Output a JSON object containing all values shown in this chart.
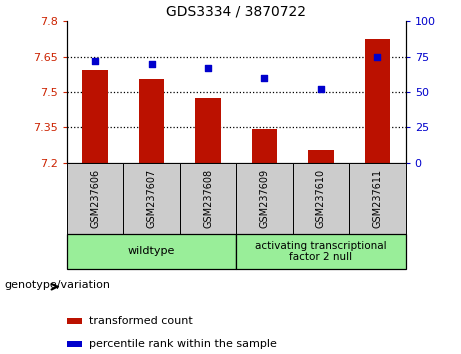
{
  "title": "GDS3334 / 3870722",
  "categories": [
    "GSM237606",
    "GSM237607",
    "GSM237608",
    "GSM237609",
    "GSM237610",
    "GSM237611"
  ],
  "bar_values": [
    7.595,
    7.555,
    7.475,
    7.345,
    7.255,
    7.725
  ],
  "scatter_values": [
    72,
    70,
    67,
    60,
    52,
    75
  ],
  "ylim_left": [
    7.2,
    7.8
  ],
  "ylim_right": [
    0,
    100
  ],
  "yticks_left": [
    7.2,
    7.35,
    7.5,
    7.65,
    7.8
  ],
  "yticks_right": [
    0,
    25,
    50,
    75,
    100
  ],
  "bar_color": "#bb1100",
  "scatter_color": "#0000cc",
  "bar_bottom": 7.2,
  "group1_label": "wildtype",
  "group2_label": "activating transcriptional\nfactor 2 null",
  "group1_indices": [
    0,
    1,
    2
  ],
  "group2_indices": [
    3,
    4,
    5
  ],
  "group_bg_color": "#99ee99",
  "genotype_label": "genotype/variation",
  "legend1": "transformed count",
  "legend2": "percentile rank within the sample",
  "tick_label_color_left": "#cc2200",
  "tick_label_color_right": "#0000cc",
  "sample_label_bg": "#cccccc",
  "fig_width": 4.61,
  "fig_height": 3.54
}
